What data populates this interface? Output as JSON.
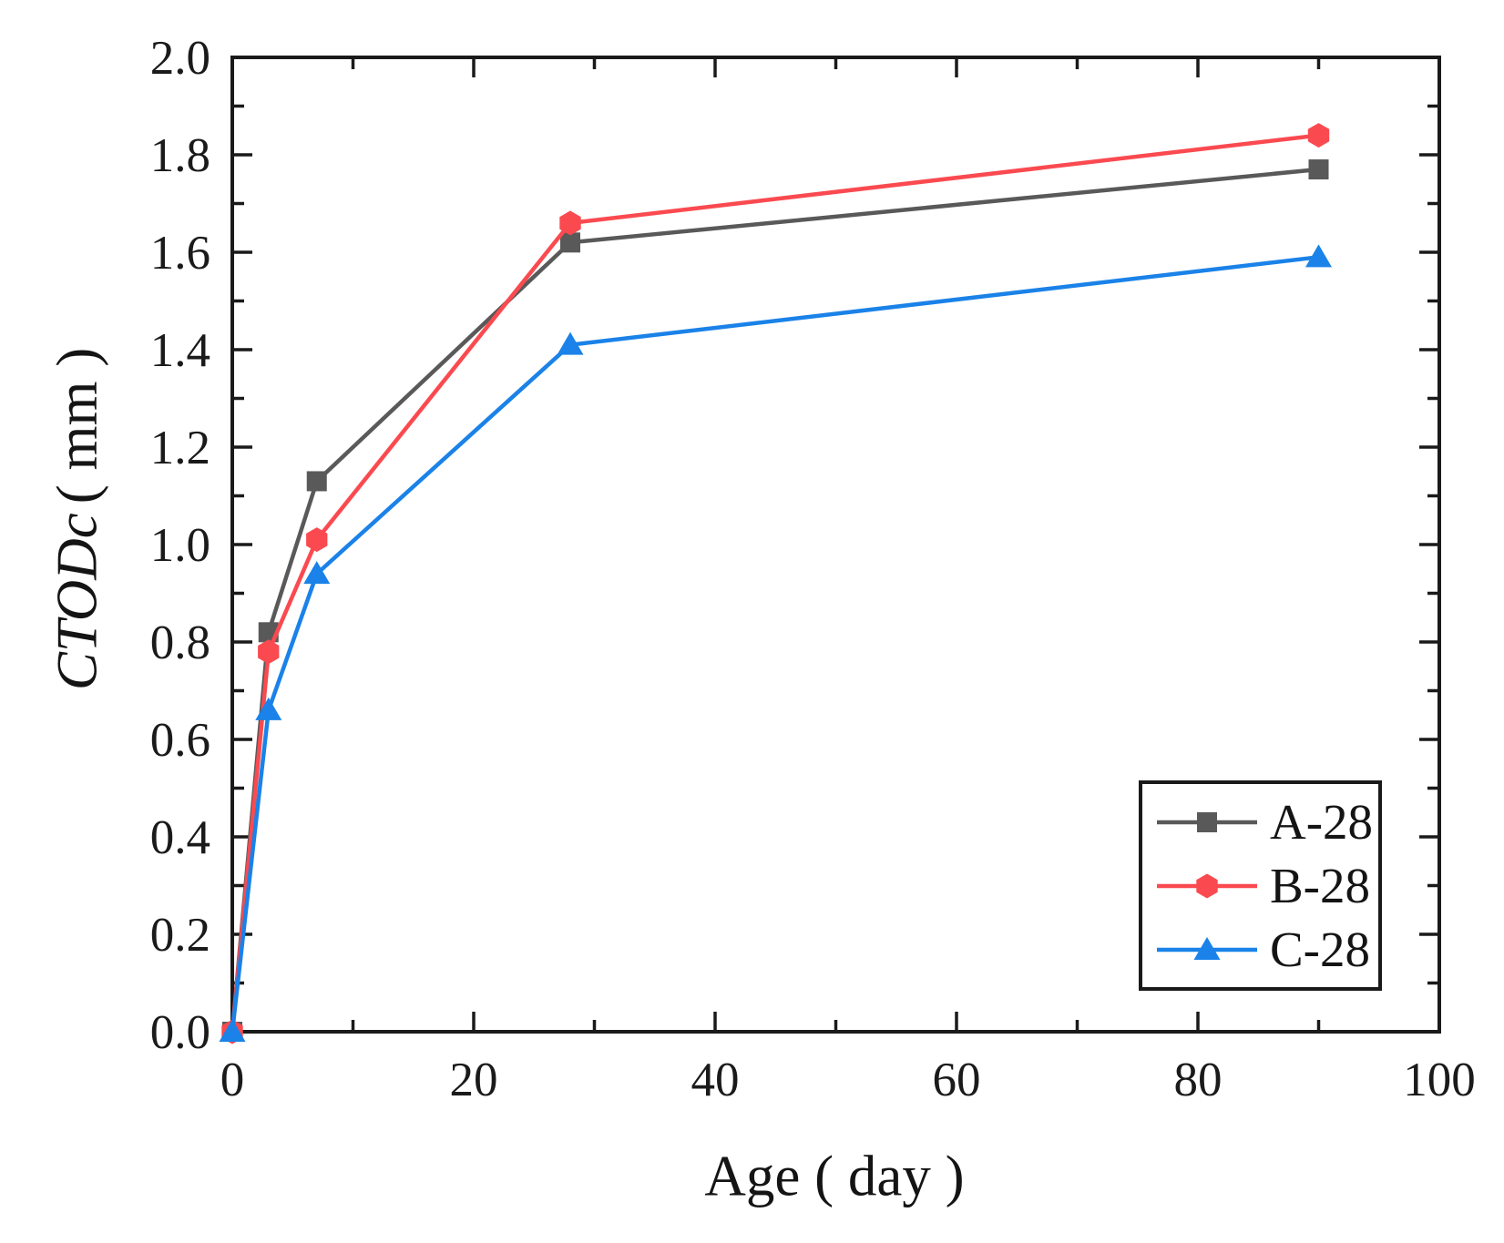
{
  "chart_data": {
    "type": "line",
    "title": "",
    "xlabel": "Age ( day )",
    "ylabel": "CTODc ( mm )",
    "ylabel_name": "CTODc",
    "ylabel_unit": "( mm )",
    "xlim": [
      0,
      100
    ],
    "ylim": [
      0,
      2.0
    ],
    "x_major_tick_step": 20,
    "x_minor_tick_step": 10,
    "y_major_tick_step": 0.2,
    "y_minor_tick_step": 0.1,
    "x_tick_labels": [
      "0",
      "20",
      "40",
      "60",
      "80",
      "100"
    ],
    "y_tick_labels": [
      "0.0",
      "0.2",
      "0.4",
      "0.6",
      "0.8",
      "1.0",
      "1.2",
      "1.4",
      "1.6",
      "1.8",
      "2.0"
    ],
    "grid": false,
    "legend_position": "lower-right",
    "x": [
      0,
      3,
      7,
      28,
      90
    ],
    "series": [
      {
        "name": "A-28",
        "color": "#595959",
        "marker": "square",
        "values": [
          0,
          0.82,
          1.13,
          1.62,
          1.77
        ]
      },
      {
        "name": "B-28",
        "color": "#FA4A50",
        "marker": "hexagon",
        "values": [
          0,
          0.78,
          1.01,
          1.66,
          1.84
        ]
      },
      {
        "name": "C-28",
        "color": "#1A82E8",
        "marker": "triangle",
        "values": [
          0,
          0.66,
          0.94,
          1.41,
          1.59
        ]
      }
    ]
  },
  "colors": {
    "axis": "#1a1a1a",
    "text": "#1a1a1a",
    "background": "#ffffff"
  }
}
